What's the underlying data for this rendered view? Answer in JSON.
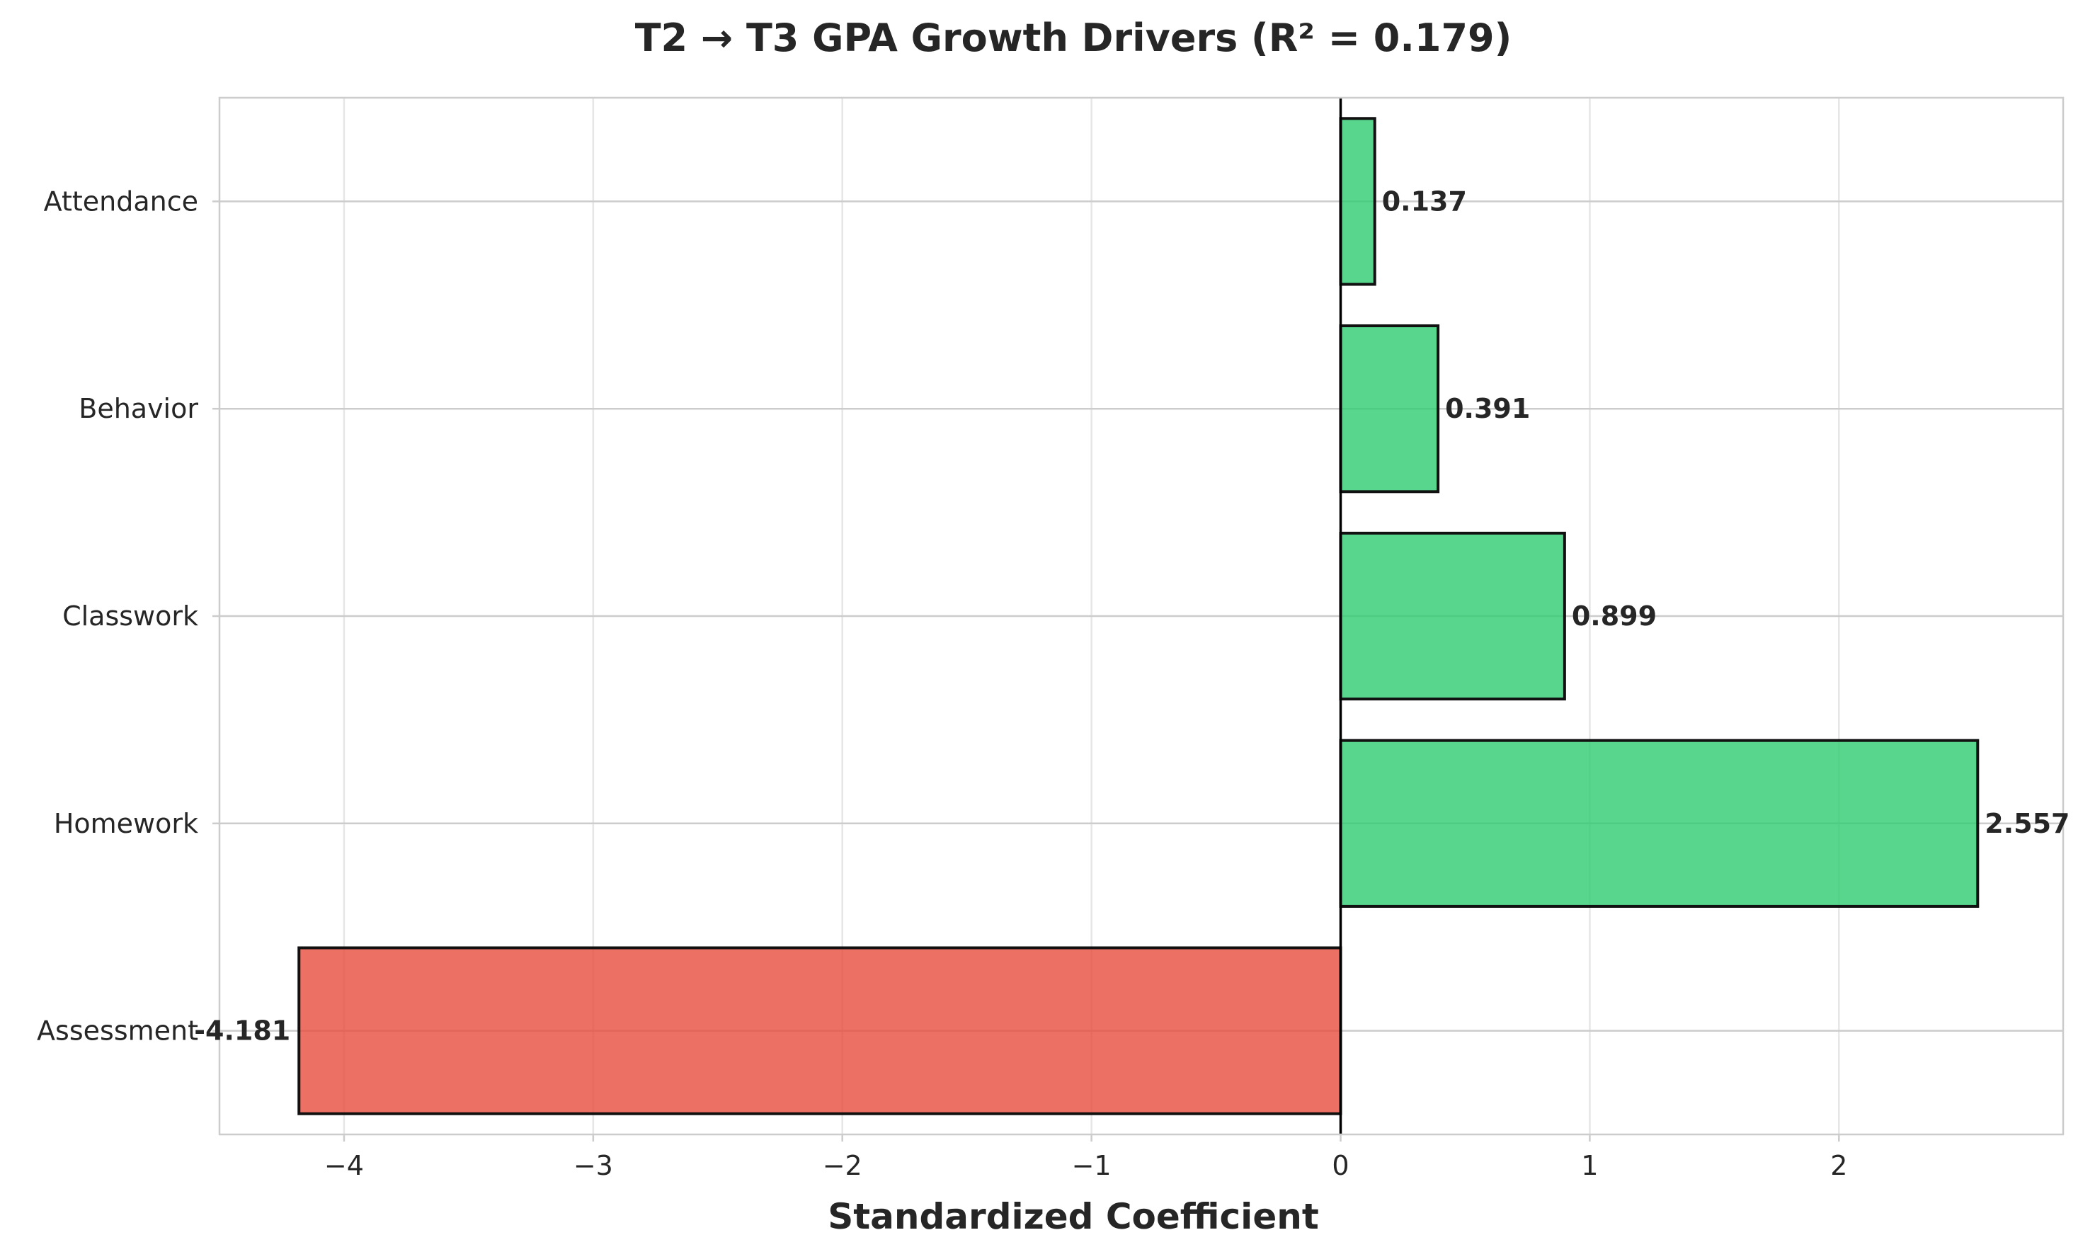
{
  "chart_data": {
    "type": "bar",
    "orientation": "horizontal",
    "title": "T2 → T3 GPA Growth Drivers (R² = 0.179)",
    "xlabel": "Standardized Coefficient",
    "ylabel": "",
    "categories": [
      "Attendance",
      "Behavior",
      "Classwork",
      "Homework",
      "Assessment"
    ],
    "values": [
      0.137,
      0.391,
      0.899,
      2.557,
      -4.181
    ],
    "value_labels": [
      "0.137",
      "0.391",
      "0.899",
      "2.557",
      "-4.181"
    ],
    "xlim": [
      -4.5,
      2.9
    ],
    "xticks": [
      -4,
      -3,
      -2,
      -1,
      0,
      1,
      2
    ],
    "xtick_labels": [
      "−4",
      "−3",
      "−2",
      "−1",
      "0",
      "1",
      "2"
    ],
    "grid": true,
    "legend": "none",
    "colors": {
      "positive": "#2ecc71",
      "negative": "#e74c3c",
      "edge": "#111111",
      "zero_line": "#000000"
    }
  }
}
